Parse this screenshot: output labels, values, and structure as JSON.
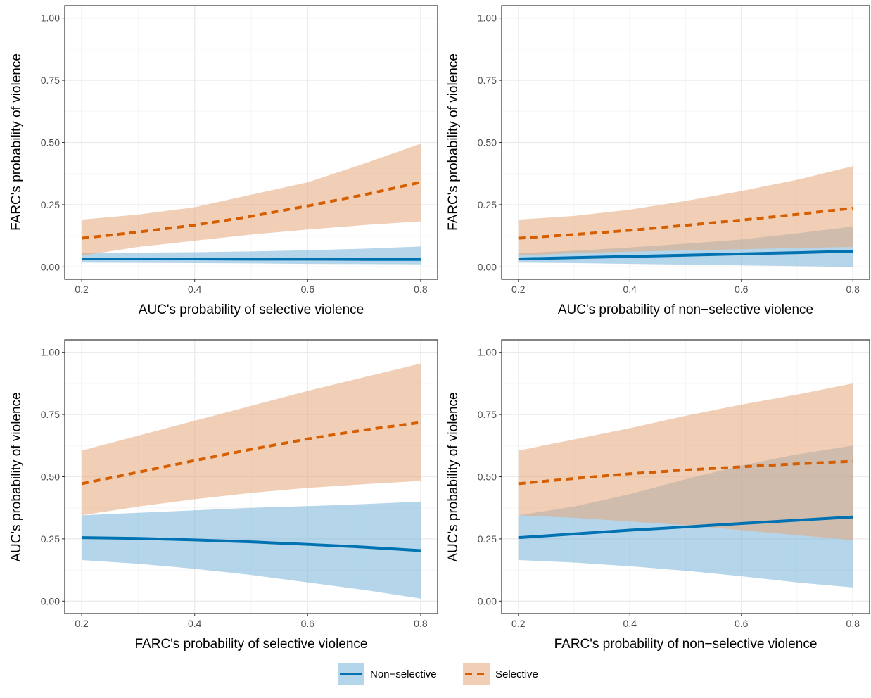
{
  "colors": {
    "non_selective": "#0072B2",
    "selective": "#D55E00",
    "non_selective_band": "#6BAED6",
    "selective_band": "#E6A77A",
    "grid_major": "#EBEBEB",
    "grid_minor": "#F5F5F5",
    "panel_border": "#333333"
  },
  "legend": {
    "position": "bottom",
    "items": [
      {
        "key": "non_selective",
        "label": "Non−selective",
        "linestyle": "solid"
      },
      {
        "key": "selective",
        "label": "Selective",
        "linestyle": "dashed"
      }
    ]
  },
  "chart_data": [
    {
      "type": "line",
      "xlabel": "AUC's probability of selective violence",
      "ylabel": "FARC's probability of violence",
      "xlim": [
        0.2,
        0.8
      ],
      "ylim": [
        0,
        1
      ],
      "xticks": [
        "0.2",
        "0.4",
        "0.6",
        "0.8"
      ],
      "yticks": [
        "0.00",
        "0.25",
        "0.50",
        "0.75",
        "1.00"
      ],
      "grid": true,
      "x": [
        0.2,
        0.3,
        0.4,
        0.5,
        0.6,
        0.7,
        0.8
      ],
      "series": [
        {
          "name": "Non−selective",
          "key": "non_selective",
          "values": [
            0.032,
            0.032,
            0.032,
            0.031,
            0.031,
            0.03,
            0.03
          ],
          "lower": [
            0.017,
            0.016,
            0.015,
            0.014,
            0.012,
            0.011,
            0.01
          ],
          "upper": [
            0.055,
            0.057,
            0.059,
            0.062,
            0.067,
            0.073,
            0.082
          ]
        },
        {
          "name": "Selective",
          "key": "selective",
          "values": [
            0.115,
            0.14,
            0.168,
            0.203,
            0.245,
            0.29,
            0.34
          ],
          "lower": [
            0.045,
            0.08,
            0.105,
            0.13,
            0.15,
            0.168,
            0.183
          ],
          "upper": [
            0.19,
            0.21,
            0.24,
            0.29,
            0.34,
            0.415,
            0.495
          ]
        }
      ]
    },
    {
      "type": "line",
      "xlabel": "AUC's probability of non−selective violence",
      "ylabel": "FARC's probability of violence",
      "xlim": [
        0.2,
        0.8
      ],
      "ylim": [
        0,
        1
      ],
      "xticks": [
        "0.2",
        "0.4",
        "0.6",
        "0.8"
      ],
      "yticks": [
        "0.00",
        "0.25",
        "0.50",
        "0.75",
        "1.00"
      ],
      "grid": true,
      "x": [
        0.2,
        0.3,
        0.4,
        0.5,
        0.6,
        0.7,
        0.8
      ],
      "series": [
        {
          "name": "Non−selective",
          "key": "non_selective",
          "values": [
            0.032,
            0.037,
            0.042,
            0.047,
            0.052,
            0.057,
            0.063
          ],
          "lower": [
            0.017,
            0.015,
            0.012,
            0.009,
            0.006,
            0.003,
            0.0
          ],
          "upper": [
            0.055,
            0.065,
            0.078,
            0.093,
            0.11,
            0.135,
            0.162
          ]
        },
        {
          "name": "Selective",
          "key": "selective",
          "values": [
            0.115,
            0.13,
            0.147,
            0.167,
            0.188,
            0.211,
            0.236
          ],
          "lower": [
            0.045,
            0.055,
            0.061,
            0.066,
            0.071,
            0.076,
            0.08
          ],
          "upper": [
            0.19,
            0.205,
            0.23,
            0.265,
            0.305,
            0.35,
            0.405
          ]
        }
      ]
    },
    {
      "type": "line",
      "xlabel": "FARC's probability of selective violence",
      "ylabel": "AUC's probability of violence",
      "xlim": [
        0.2,
        0.8
      ],
      "ylim": [
        0,
        1
      ],
      "xticks": [
        "0.2",
        "0.4",
        "0.6",
        "0.8"
      ],
      "yticks": [
        "0.00",
        "0.25",
        "0.50",
        "0.75",
        "1.00"
      ],
      "grid": true,
      "x": [
        0.2,
        0.3,
        0.4,
        0.5,
        0.6,
        0.7,
        0.8
      ],
      "series": [
        {
          "name": "Non−selective",
          "key": "non_selective",
          "values": [
            0.255,
            0.252,
            0.246,
            0.238,
            0.228,
            0.217,
            0.203
          ],
          "lower": [
            0.165,
            0.15,
            0.13,
            0.105,
            0.075,
            0.045,
            0.01
          ],
          "upper": [
            0.345,
            0.355,
            0.365,
            0.375,
            0.382,
            0.39,
            0.4
          ]
        },
        {
          "name": "Selective",
          "key": "selective",
          "values": [
            0.472,
            0.518,
            0.565,
            0.61,
            0.652,
            0.688,
            0.718
          ],
          "lower": [
            0.345,
            0.38,
            0.41,
            0.435,
            0.455,
            0.47,
            0.483
          ],
          "upper": [
            0.605,
            0.665,
            0.725,
            0.785,
            0.845,
            0.9,
            0.955
          ]
        }
      ]
    },
    {
      "type": "line",
      "xlabel": "FARC's probability of non−selective violence",
      "ylabel": "AUC's probability of violence",
      "xlim": [
        0.2,
        0.8
      ],
      "ylim": [
        0,
        1
      ],
      "xticks": [
        "0.2",
        "0.4",
        "0.6",
        "0.8"
      ],
      "yticks": [
        "0.00",
        "0.25",
        "0.50",
        "0.75",
        "1.00"
      ],
      "grid": true,
      "x": [
        0.2,
        0.3,
        0.4,
        0.5,
        0.6,
        0.7,
        0.8
      ],
      "series": [
        {
          "name": "Non−selective",
          "key": "non_selective",
          "values": [
            0.255,
            0.27,
            0.285,
            0.298,
            0.312,
            0.325,
            0.338
          ],
          "lower": [
            0.165,
            0.155,
            0.14,
            0.122,
            0.1,
            0.075,
            0.055
          ],
          "upper": [
            0.345,
            0.38,
            0.43,
            0.49,
            0.545,
            0.59,
            0.625
          ]
        },
        {
          "name": "Selective",
          "key": "selective",
          "values": [
            0.472,
            0.493,
            0.512,
            0.527,
            0.54,
            0.552,
            0.562
          ],
          "lower": [
            0.345,
            0.335,
            0.32,
            0.305,
            0.285,
            0.265,
            0.245
          ],
          "upper": [
            0.605,
            0.65,
            0.695,
            0.745,
            0.79,
            0.83,
            0.875
          ]
        }
      ]
    }
  ]
}
